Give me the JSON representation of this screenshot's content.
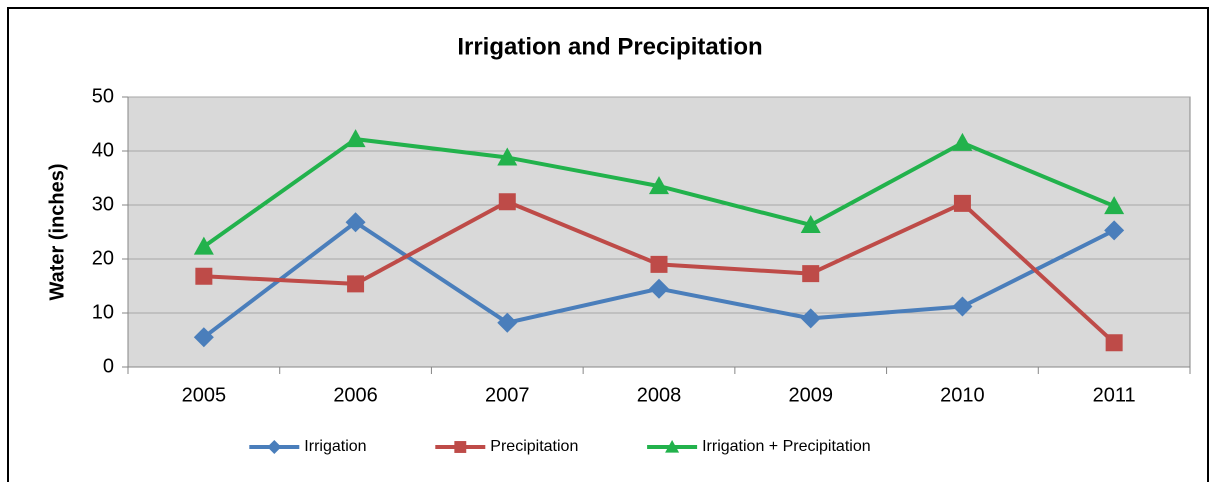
{
  "chart_data": {
    "type": "line",
    "title": "Irrigation and Precipitation",
    "y_label": "Water (inches)",
    "categories": [
      "2005",
      "2006",
      "2007",
      "2008",
      "2009",
      "2010",
      "2011"
    ],
    "series": [
      {
        "name": "Irrigation",
        "color": "#4a7ebb",
        "marker": "diamond",
        "values": [
          5.5,
          26.8,
          8.2,
          14.5,
          9,
          11.2,
          25.3
        ]
      },
      {
        "name": "Precipitation",
        "color": "#be4b48",
        "marker": "square",
        "values": [
          16.8,
          15.4,
          30.6,
          19,
          17.3,
          30.3,
          4.5
        ]
      },
      {
        "name": "Irrigation + Precipitation",
        "color": "#22b24c",
        "marker": "triangle",
        "values": [
          22.3,
          42.2,
          38.8,
          33.5,
          26.3,
          41.5,
          29.8
        ]
      }
    ],
    "ylim": [
      0,
      50
    ],
    "yticks": [
      0,
      10,
      20,
      30,
      40,
      50
    ],
    "grid": true,
    "legend": "bottom"
  }
}
